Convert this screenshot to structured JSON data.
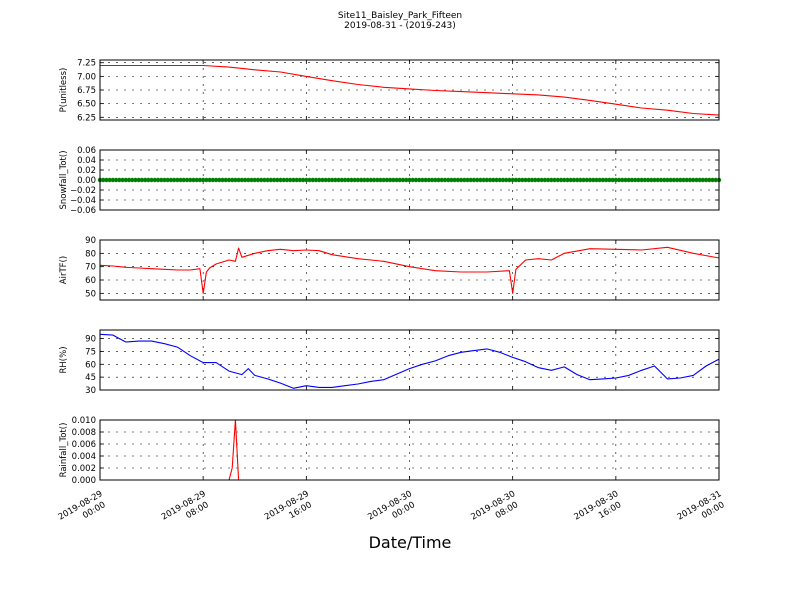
{
  "figure": {
    "title": "Site11_Baisley_Park_Fifteen",
    "subtitle": "2019-08-31 - (2019-243)",
    "xlabel": "Date/Time"
  },
  "chart_data": [
    {
      "type": "line",
      "ylabel": "P(unitless)",
      "ylim": [
        6.2,
        7.3
      ],
      "yticks": [
        "7.25",
        "7.00",
        "6.75",
        "6.50",
        "6.25"
      ],
      "ytick_values": [
        7.25,
        7.0,
        6.75,
        6.5,
        6.25
      ],
      "grid": true,
      "series": [
        {
          "color": "#ff0000",
          "x": [
            "2019-08-29 00:00",
            "2019-08-29 02:00",
            "2019-08-29 04:00",
            "2019-08-29 06:00",
            "2019-08-29 08:00",
            "2019-08-29 10:00",
            "2019-08-29 12:00",
            "2019-08-29 14:00",
            "2019-08-29 16:00",
            "2019-08-29 18:00",
            "2019-08-29 20:00",
            "2019-08-29 22:00",
            "2019-08-30 00:00",
            "2019-08-30 02:00",
            "2019-08-30 04:00",
            "2019-08-30 06:00",
            "2019-08-30 08:00",
            "2019-08-30 10:00",
            "2019-08-30 12:00",
            "2019-08-30 14:00",
            "2019-08-30 16:00",
            "2019-08-30 18:00",
            "2019-08-30 20:00",
            "2019-08-30 22:00",
            "2019-08-31 00:00"
          ],
          "y": [
            7.2,
            7.2,
            7.2,
            7.2,
            7.2,
            7.17,
            7.12,
            7.08,
            7.0,
            6.92,
            6.85,
            6.8,
            6.77,
            6.74,
            6.72,
            6.7,
            6.68,
            6.66,
            6.62,
            6.56,
            6.49,
            6.42,
            6.38,
            6.32,
            6.29
          ]
        }
      ]
    },
    {
      "type": "scatter",
      "ylabel": "Snowfall_Tot()",
      "ylim": [
        -0.06,
        0.06
      ],
      "yticks": [
        "0.06",
        "0.04",
        "0.02",
        "0.00",
        "−0.02",
        "−0.04",
        "−0.06"
      ],
      "ytick_values": [
        0.06,
        0.04,
        0.02,
        0.0,
        -0.02,
        -0.04,
        -0.06
      ],
      "grid": true,
      "series": [
        {
          "color": "#008000",
          "x_range": [
            "2019-08-29 00:00",
            "2019-08-31 00:00"
          ],
          "interval_minutes": 15,
          "y_constant": 0.0
        }
      ]
    },
    {
      "type": "line",
      "ylabel": "AirTF()",
      "ylim": [
        45,
        90
      ],
      "yticks": [
        "90",
        "80",
        "70",
        "60",
        "50"
      ],
      "ytick_values": [
        90,
        80,
        70,
        60,
        50
      ],
      "grid": true,
      "series": [
        {
          "color": "#ff0000",
          "x": [
            "2019-08-29 00:00",
            "2019-08-29 01:00",
            "2019-08-29 02:00",
            "2019-08-29 03:00",
            "2019-08-29 04:00",
            "2019-08-29 05:00",
            "2019-08-29 06:00",
            "2019-08-29 07:00",
            "2019-08-29 07:45",
            "2019-08-29 08:00",
            "2019-08-29 08:15",
            "2019-08-29 08:30",
            "2019-08-29 09:00",
            "2019-08-29 10:00",
            "2019-08-29 10:30",
            "2019-08-29 10:45",
            "2019-08-29 11:00",
            "2019-08-29 12:00",
            "2019-08-29 13:00",
            "2019-08-29 14:00",
            "2019-08-29 15:00",
            "2019-08-29 16:00",
            "2019-08-29 17:00",
            "2019-08-29 18:00",
            "2019-08-29 20:00",
            "2019-08-29 22:00",
            "2019-08-30 00:00",
            "2019-08-30 02:00",
            "2019-08-30 04:00",
            "2019-08-30 06:00",
            "2019-08-30 07:45",
            "2019-08-30 08:00",
            "2019-08-30 08:15",
            "2019-08-30 09:00",
            "2019-08-30 10:00",
            "2019-08-30 11:00",
            "2019-08-30 12:00",
            "2019-08-30 14:00",
            "2019-08-30 16:00",
            "2019-08-30 18:00",
            "2019-08-30 20:00",
            "2019-08-30 22:00",
            "2019-08-31 00:00"
          ],
          "y": [
            71,
            70.5,
            69.5,
            69,
            68.5,
            68,
            67.5,
            67.5,
            68.5,
            50,
            66,
            69,
            72,
            75,
            74,
            84,
            77,
            80,
            82,
            83,
            82,
            82.5,
            82,
            79,
            76,
            74,
            70,
            67,
            66,
            66,
            67,
            50,
            68,
            75,
            76,
            75,
            80,
            83.5,
            83,
            82.5,
            84.5,
            80,
            76.5
          ]
        }
      ]
    },
    {
      "type": "line",
      "ylabel": "RH(%)",
      "ylim": [
        30,
        100
      ],
      "yticks": [
        "90",
        "75",
        "60",
        "45",
        "30"
      ],
      "ytick_values": [
        90,
        75,
        60,
        45,
        30
      ],
      "grid": true,
      "series": [
        {
          "color": "#0000ff",
          "x": [
            "2019-08-29 00:00",
            "2019-08-29 01:00",
            "2019-08-29 02:00",
            "2019-08-29 03:00",
            "2019-08-29 04:00",
            "2019-08-29 05:00",
            "2019-08-29 06:00",
            "2019-08-29 07:00",
            "2019-08-29 08:00",
            "2019-08-29 09:00",
            "2019-08-29 10:00",
            "2019-08-29 11:00",
            "2019-08-29 11:30",
            "2019-08-29 12:00",
            "2019-08-29 13:00",
            "2019-08-29 14:00",
            "2019-08-29 15:00",
            "2019-08-29 16:00",
            "2019-08-29 17:00",
            "2019-08-29 18:00",
            "2019-08-29 19:00",
            "2019-08-29 20:00",
            "2019-08-29 21:00",
            "2019-08-29 22:00",
            "2019-08-30 00:00",
            "2019-08-30 01:00",
            "2019-08-30 02:00",
            "2019-08-30 03:00",
            "2019-08-30 04:00",
            "2019-08-30 05:00",
            "2019-08-30 06:00",
            "2019-08-30 07:00",
            "2019-08-30 08:00",
            "2019-08-30 09:00",
            "2019-08-30 10:00",
            "2019-08-30 11:00",
            "2019-08-30 12:00",
            "2019-08-30 13:00",
            "2019-08-30 14:00",
            "2019-08-30 15:00",
            "2019-08-30 16:00",
            "2019-08-30 17:00",
            "2019-08-30 18:00",
            "2019-08-30 19:00",
            "2019-08-30 20:00",
            "2019-08-30 21:00",
            "2019-08-30 22:00",
            "2019-08-30 23:00",
            "2019-08-31 00:00"
          ],
          "y": [
            95,
            94,
            86,
            87,
            87,
            84,
            80,
            70,
            62,
            62,
            52,
            48,
            55,
            47,
            43,
            38,
            32,
            35,
            33,
            33,
            35,
            37,
            40,
            42,
            55,
            60,
            64,
            70,
            74,
            76,
            78,
            74,
            68,
            63,
            56,
            53,
            57,
            48,
            42,
            43,
            44,
            47,
            53,
            58,
            43,
            44,
            47,
            58,
            66
          ]
        }
      ]
    },
    {
      "type": "line",
      "ylabel": "Rainfall_Tot()",
      "ylim": [
        0,
        0.01
      ],
      "yticks": [
        "0.010",
        "0.008",
        "0.006",
        "0.004",
        "0.002",
        "0.000"
      ],
      "ytick_values": [
        0.01,
        0.008,
        0.006,
        0.004,
        0.002,
        0.0
      ],
      "grid": true,
      "series": [
        {
          "color": "#ff0000",
          "x": [
            "2019-08-29 00:00",
            "2019-08-29 10:00",
            "2019-08-29 10:15",
            "2019-08-29 10:30",
            "2019-08-29 10:45",
            "2019-08-31 00:00"
          ],
          "y": [
            0,
            0,
            0.002,
            0.01,
            0,
            0
          ]
        }
      ]
    }
  ],
  "x_axis": {
    "range": [
      "2019-08-29 00:00",
      "2019-08-31 00:00"
    ],
    "ticks": [
      {
        "t": "2019-08-29 00:00",
        "line1": "2019-08-29",
        "line2": "00:00"
      },
      {
        "t": "2019-08-29 08:00",
        "line1": "2019-08-29",
        "line2": "08:00"
      },
      {
        "t": "2019-08-29 16:00",
        "line1": "2019-08-29",
        "line2": "16:00"
      },
      {
        "t": "2019-08-30 00:00",
        "line1": "2019-08-30",
        "line2": "00:00"
      },
      {
        "t": "2019-08-30 08:00",
        "line1": "2019-08-30",
        "line2": "08:00"
      },
      {
        "t": "2019-08-30 16:00",
        "line1": "2019-08-30",
        "line2": "16:00"
      },
      {
        "t": "2019-08-31 00:00",
        "line1": "2019-08-31",
        "line2": "00:00"
      }
    ]
  }
}
